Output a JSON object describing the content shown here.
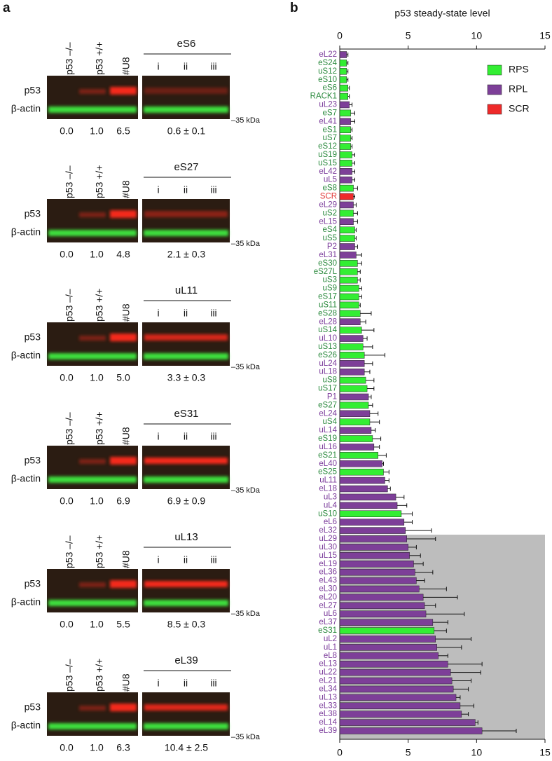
{
  "panel_a": {
    "label": "a",
    "lane_labels": [
      "p53 –/–",
      "p53 +/+",
      "#U8"
    ],
    "replicate_labels": [
      "i",
      "ii",
      "iii"
    ],
    "row_labels": [
      "p53",
      "β-actin"
    ],
    "marker": "–35 kDa",
    "blots": [
      {
        "name": "eS6",
        "controls": [
          "0.0",
          "1.0",
          "6.5"
        ],
        "mean": "0.6 ± 0.1"
      },
      {
        "name": "eS27",
        "controls": [
          "0.0",
          "1.0",
          "4.8"
        ],
        "mean": "2.1 ± 0.3"
      },
      {
        "name": "uL11",
        "controls": [
          "0.0",
          "1.0",
          "5.0"
        ],
        "mean": "3.3 ± 0.3"
      },
      {
        "name": "eS31",
        "controls": [
          "0.0",
          "1.0",
          "6.9"
        ],
        "mean": "6.9 ± 0.9"
      },
      {
        "name": "uL13",
        "controls": [
          "0.0",
          "1.0",
          "5.5"
        ],
        "mean": "8.5 ± 0.3"
      },
      {
        "name": "eL39",
        "controls": [
          "0.0",
          "1.0",
          "6.3"
        ],
        "mean": "10.4 ± 2.5"
      }
    ]
  },
  "chart_data": {
    "type": "hbar",
    "panel_label": "b",
    "title": "p53 steady-state level",
    "xlim": [
      0,
      15
    ],
    "xticks": [
      0,
      5,
      10,
      15
    ],
    "legend": "upper right",
    "categories": [
      "eL22",
      "eS24",
      "uS12",
      "eS10",
      "eS6",
      "RACK1",
      "uL23",
      "eS7",
      "eL41",
      "eS1",
      "uS7",
      "eS12",
      "uS19",
      "uS15",
      "eL42",
      "uL5",
      "eS8",
      "SCR",
      "eL29",
      "uS2",
      "eL15",
      "eS4",
      "uS5",
      "P2",
      "eL31",
      "eS30",
      "eS27L",
      "uS3",
      "uS9",
      "eS17",
      "uS11",
      "eS28",
      "eL28",
      "uS14",
      "uL10",
      "uS13",
      "eS26",
      "uL24",
      "uL18",
      "uS8",
      "uS17",
      "P1",
      "eS27",
      "eL24",
      "uS4",
      "uL14",
      "eS19",
      "uL16",
      "eS21",
      "eL40",
      "eS25",
      "uL11",
      "eL18",
      "uL3",
      "uL4",
      "uS10",
      "eL6",
      "eL32",
      "uL29",
      "uL30",
      "uL15",
      "eL19",
      "eL36",
      "eL43",
      "eL30",
      "eL20",
      "eL27",
      "uL6",
      "eL37",
      "eS31",
      "uL2",
      "uL1",
      "eL8",
      "eL13",
      "uL22",
      "eL21",
      "eL34",
      "uL13",
      "eL33",
      "eL38",
      "eL14",
      "eL39"
    ],
    "series": [
      {
        "name": "RPS",
        "color": "#33ee33",
        "label_color": "#2b8a3e",
        "values": [
          null,
          0.5,
          0.5,
          0.5,
          0.6,
          0.6,
          null,
          0.8,
          null,
          0.8,
          0.8,
          0.8,
          0.9,
          0.9,
          null,
          null,
          1.0,
          null,
          null,
          1.0,
          null,
          1.1,
          1.1,
          null,
          null,
          1.3,
          1.3,
          1.3,
          1.4,
          1.4,
          1.4,
          1.5,
          null,
          1.6,
          null,
          1.7,
          1.8,
          null,
          null,
          1.9,
          2.0,
          null,
          2.1,
          null,
          2.2,
          null,
          2.4,
          null,
          2.8,
          null,
          3.2,
          null,
          null,
          null,
          null,
          4.5,
          null,
          null,
          null,
          null,
          null,
          null,
          null,
          null,
          null,
          null,
          null,
          null,
          null,
          6.9,
          null,
          null,
          null,
          null,
          null,
          null,
          null,
          null,
          null,
          null,
          null,
          null
        ],
        "errors": [
          null,
          0.1,
          0.1,
          0.1,
          0.1,
          0.1,
          null,
          0.3,
          null,
          0.1,
          0.1,
          0.1,
          0.2,
          0.2,
          null,
          null,
          0.3,
          null,
          null,
          0.3,
          null,
          0.1,
          0.1,
          null,
          null,
          0.3,
          0.2,
          0.2,
          0.2,
          0.2,
          0.1,
          0.8,
          null,
          0.9,
          null,
          0.7,
          1.5,
          null,
          null,
          0.6,
          0.5,
          null,
          0.3,
          null,
          0.7,
          null,
          0.6,
          null,
          0.6,
          null,
          0.4,
          null,
          null,
          null,
          null,
          0.8,
          null,
          null,
          null,
          null,
          null,
          null,
          null,
          null,
          null,
          null,
          null,
          null,
          null,
          0.9,
          null,
          null,
          null,
          null,
          null,
          null,
          null,
          null,
          null,
          null,
          null,
          null
        ]
      },
      {
        "name": "RPL",
        "color": "#7d3f98",
        "label_color": "#7a3a9a",
        "values": [
          0.5,
          null,
          null,
          null,
          null,
          null,
          0.7,
          null,
          0.8,
          null,
          null,
          null,
          null,
          null,
          0.9,
          0.9,
          null,
          null,
          1.0,
          null,
          1.0,
          null,
          null,
          1.1,
          1.2,
          null,
          null,
          null,
          null,
          null,
          null,
          null,
          1.5,
          null,
          1.7,
          null,
          null,
          1.8,
          1.8,
          null,
          null,
          2.1,
          null,
          2.2,
          null,
          2.3,
          null,
          2.5,
          null,
          3.1,
          null,
          3.3,
          3.5,
          4.1,
          4.2,
          null,
          4.7,
          4.8,
          4.9,
          5.0,
          5.1,
          5.4,
          5.5,
          5.6,
          5.8,
          6.1,
          6.2,
          6.3,
          6.8,
          null,
          7.0,
          7.1,
          7.2,
          7.9,
          8.1,
          8.2,
          8.3,
          8.5,
          8.8,
          8.9,
          9.9,
          10.4
        ],
        "errors": [
          0.1,
          null,
          null,
          null,
          null,
          null,
          0.2,
          null,
          0.3,
          null,
          null,
          null,
          null,
          null,
          0.2,
          0.2,
          null,
          null,
          0.2,
          null,
          0.3,
          null,
          null,
          0.2,
          0.4,
          null,
          null,
          null,
          null,
          null,
          null,
          null,
          0.4,
          null,
          0.3,
          null,
          null,
          0.6,
          0.4,
          null,
          null,
          0.2,
          null,
          0.6,
          null,
          0.3,
          null,
          0.4,
          null,
          0.1,
          null,
          0.3,
          0.2,
          0.6,
          0.7,
          null,
          0.6,
          1.9,
          2.1,
          0.6,
          0.8,
          0.7,
          1.3,
          0.6,
          2.0,
          2.5,
          0.8,
          2.8,
          1.1,
          null,
          2.6,
          1.8,
          0.7,
          2.5,
          2.2,
          1.4,
          1.1,
          0.3,
          1.0,
          0.5,
          0.2,
          2.5
        ]
      },
      {
        "name": "SCR",
        "color": "#ee2a2a",
        "label_color": "#e03030",
        "values": [
          null,
          null,
          null,
          null,
          null,
          null,
          null,
          null,
          null,
          null,
          null,
          null,
          null,
          null,
          null,
          null,
          null,
          1.0,
          null,
          null,
          null,
          null,
          null,
          null,
          null,
          null,
          null,
          null,
          null,
          null,
          null,
          null,
          null,
          null,
          null,
          null,
          null,
          null,
          null,
          null,
          null,
          null,
          null,
          null,
          null,
          null,
          null,
          null,
          null,
          null,
          null,
          null,
          null,
          null,
          null,
          null,
          null,
          null,
          null,
          null,
          null,
          null,
          null,
          null,
          null,
          null,
          null,
          null,
          null,
          null,
          null,
          null,
          null,
          null,
          null,
          null,
          null,
          null,
          null,
          null,
          null,
          null
        ],
        "errors": [
          null,
          null,
          null,
          null,
          null,
          null,
          null,
          null,
          null,
          null,
          null,
          null,
          null,
          null,
          null,
          null,
          null,
          0.1,
          null,
          null,
          null,
          null,
          null,
          null,
          null,
          null,
          null,
          null,
          null,
          null,
          null,
          null,
          null,
          null,
          null,
          null,
          null,
          null,
          null,
          null,
          null,
          null,
          null,
          null,
          null,
          null,
          null,
          null,
          null,
          null,
          null,
          null,
          null,
          null,
          null,
          null,
          null,
          null,
          null,
          null,
          null,
          null,
          null,
          null,
          null,
          null,
          null,
          null,
          null,
          null,
          null,
          null,
          null,
          null,
          null,
          null,
          null,
          null,
          null,
          null,
          null,
          null
        ]
      }
    ]
  }
}
